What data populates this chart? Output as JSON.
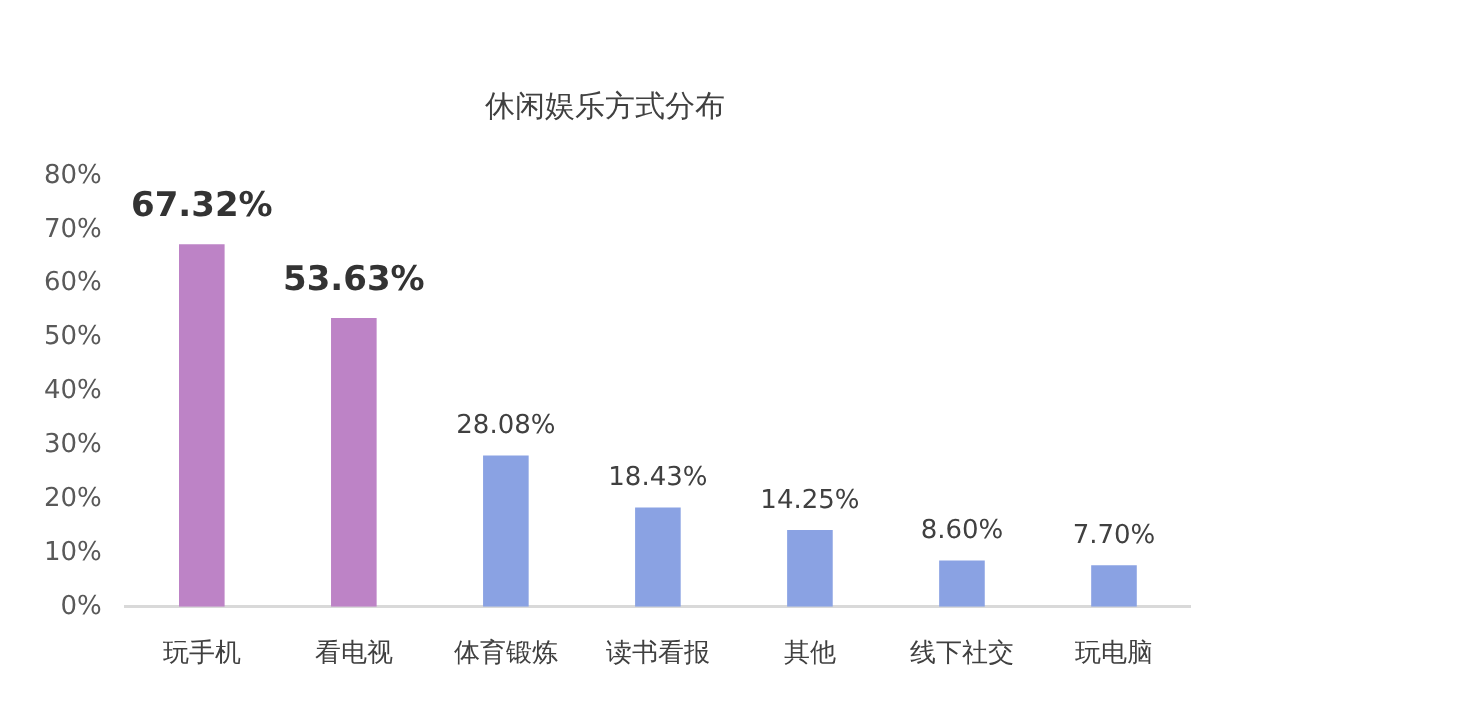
{
  "chart_data": {
    "type": "bar",
    "title": "休闲娱乐方式分布",
    "categories": [
      "玩手机",
      "看电视",
      "体育锻炼",
      "读书看报",
      "其他",
      "线下社交",
      "玩电脑"
    ],
    "values": [
      67.32,
      53.63,
      28.08,
      18.43,
      14.25,
      8.6,
      7.7
    ],
    "colors": [
      "#bd83c6",
      "#bd83c6",
      "#8aa2e3",
      "#8aa2e3",
      "#8aa2e3",
      "#8aa2e3",
      "#8aa2e3"
    ],
    "value_labels": [
      "67.32%",
      "53.63%",
      "28.08%",
      "18.43%",
      "14.25%",
      "8.60%",
      "7.70%"
    ],
    "ylim": [
      0,
      80
    ],
    "yticks": [
      {
        "value": 0,
        "label": "0%"
      },
      {
        "value": 10,
        "label": "10%"
      },
      {
        "value": 20,
        "label": "20%"
      },
      {
        "value": 30,
        "label": "30%"
      },
      {
        "value": 40,
        "label": "40%"
      },
      {
        "value": 50,
        "label": "50%"
      },
      {
        "value": 60,
        "label": "60%"
      },
      {
        "value": 70,
        "label": "70%"
      },
      {
        "value": 80,
        "label": "80%"
      }
    ],
    "grid": false,
    "legend": false
  }
}
